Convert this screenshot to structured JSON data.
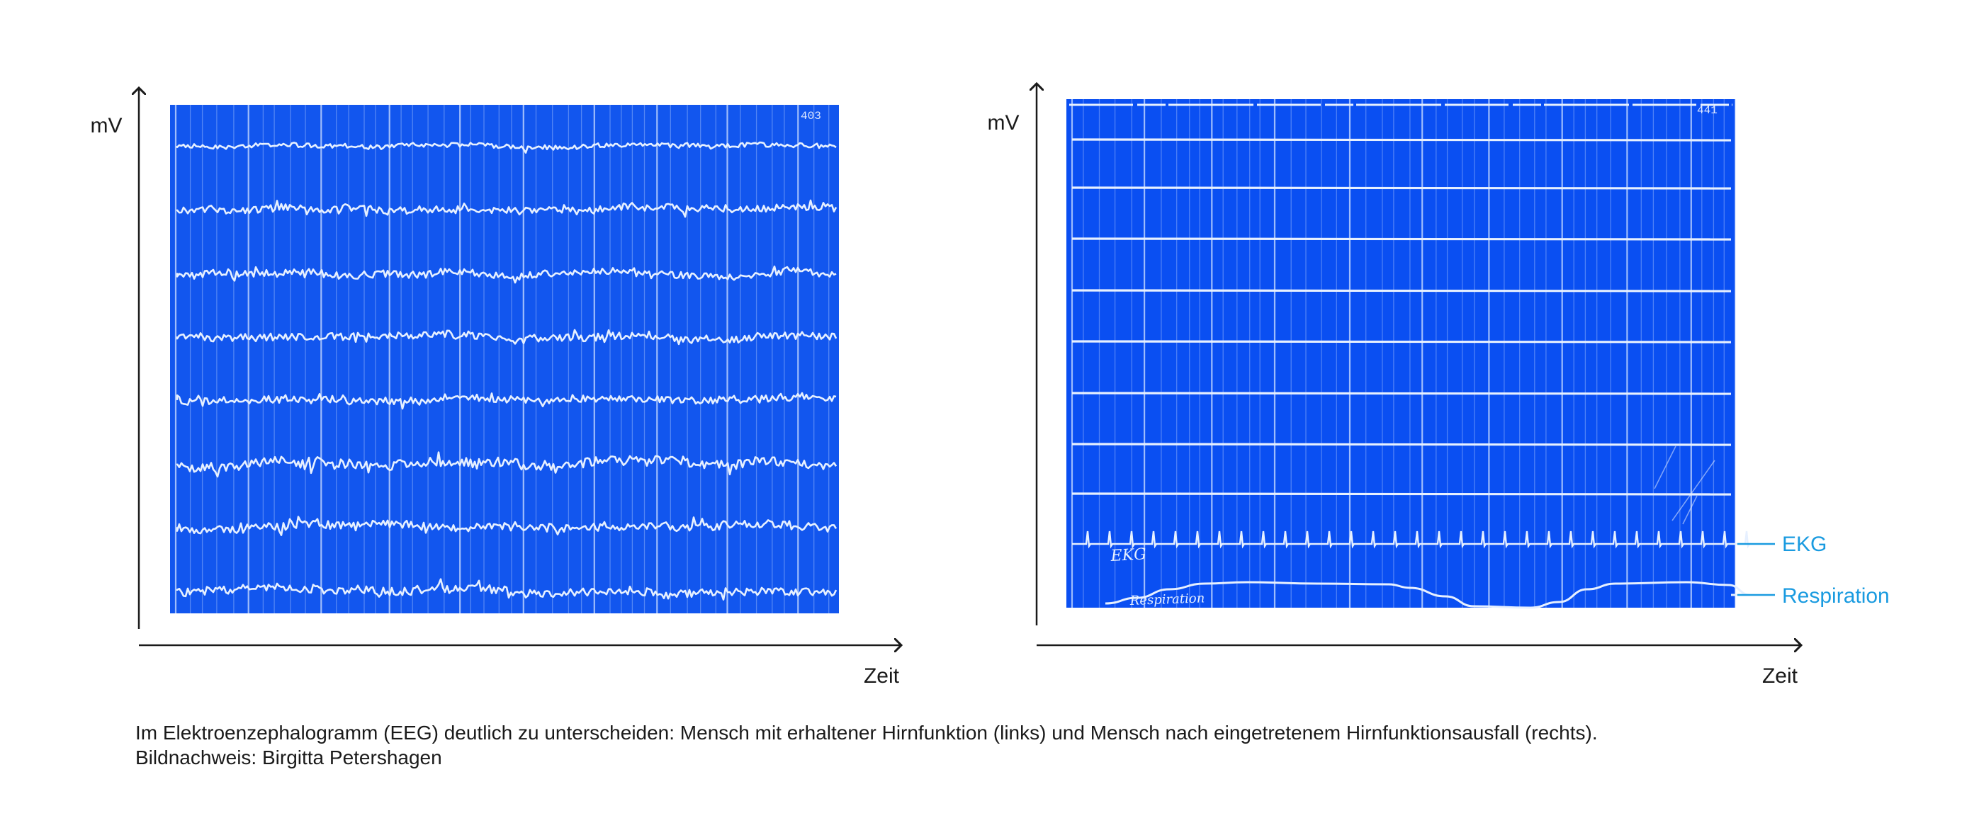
{
  "colors": {
    "panel_bg": "#0a4ff2",
    "panel_bg_left": "#1256ee",
    "trace": "#e6f0ff",
    "axis": "#1a1a1a",
    "annotation": "#1a9be0"
  },
  "chart_data": [
    {
      "type": "line",
      "panel": "left",
      "ylabel": "mV",
      "xlabel": "Zeit",
      "stamp": "403",
      "traces": 8,
      "grid": true,
      "series": [
        {
          "signal": "eeg-activity",
          "amplitude": 0.35
        },
        {
          "signal": "eeg-activity",
          "amplitude": 0.55
        },
        {
          "signal": "eeg-activity",
          "amplitude": 0.55
        },
        {
          "signal": "eeg-activity",
          "amplitude": 0.6
        },
        {
          "signal": "eeg-activity",
          "amplitude": 0.55
        },
        {
          "signal": "eeg-activity",
          "amplitude": 0.75
        },
        {
          "signal": "eeg-activity",
          "amplitude": 0.65
        },
        {
          "signal": "eeg-activity",
          "amplitude": 0.65
        }
      ]
    },
    {
      "type": "line",
      "panel": "right",
      "ylabel": "mV",
      "xlabel": "Zeit",
      "stamp": "441",
      "traces": 10,
      "grid": true,
      "series": [
        {
          "signal": "flat",
          "amplitude": 0
        },
        {
          "signal": "flat",
          "amplitude": 0
        },
        {
          "signal": "flat",
          "amplitude": 0
        },
        {
          "signal": "flat",
          "amplitude": 0
        },
        {
          "signal": "flat",
          "amplitude": 0
        },
        {
          "signal": "flat",
          "amplitude": 0
        },
        {
          "signal": "flat",
          "amplitude": 0
        },
        {
          "signal": "flat",
          "amplitude": 0
        },
        {
          "name": "EKG",
          "signal": "ekg-spikes",
          "amplitude": 1
        },
        {
          "name": "Respiration",
          "signal": "respiration",
          "amplitude": 1
        }
      ],
      "annotations": [
        "EKG",
        "Respiration"
      ],
      "handwritten": [
        "EKG",
        "Respiration"
      ]
    }
  ],
  "caption": {
    "line1": "Im Elektroenzephalogramm (EEG) deutlich zu unterscheiden: Mensch mit erhaltener Hirnfunktion (links) und Mensch nach eingetretenem Hirnfunktionsausfall (rechts).",
    "line2": "Bildnachweis: Birgitta Petershagen"
  }
}
